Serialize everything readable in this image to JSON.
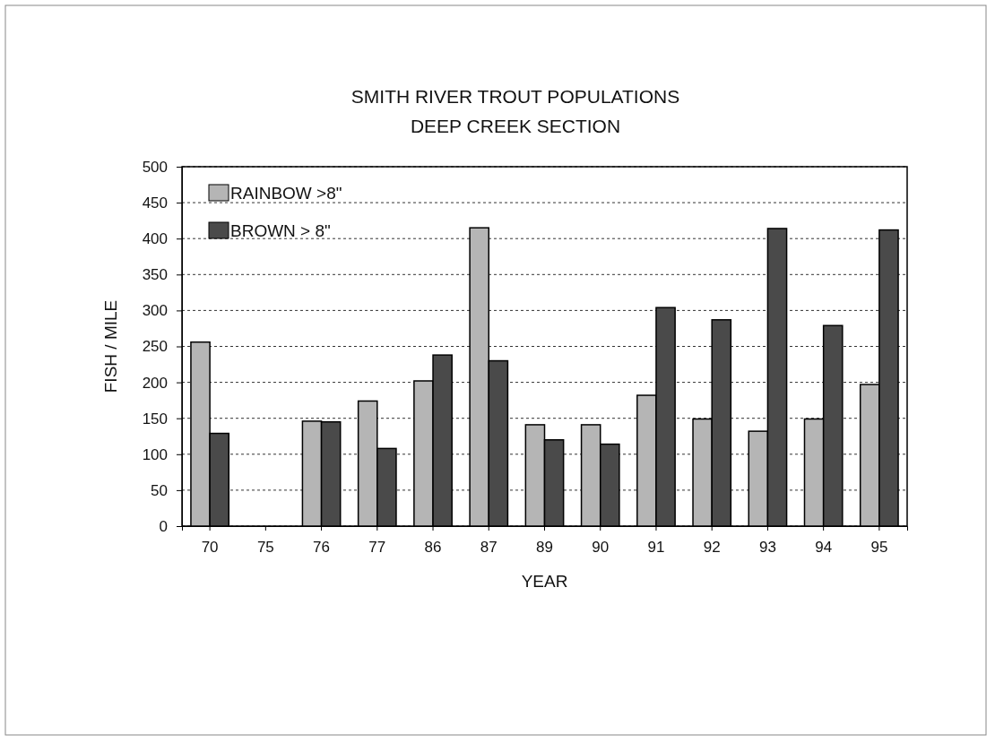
{
  "chart_data": {
    "type": "bar",
    "title": "SMITH RIVER TROUT POPULATIONS",
    "subtitle": "DEEP CREEK SECTION",
    "xlabel": "YEAR",
    "ylabel": "FISH / MILE",
    "categories": [
      "70",
      "75",
      "76",
      "77",
      "86",
      "87",
      "89",
      "90",
      "91",
      "92",
      "93",
      "94",
      "95"
    ],
    "series": [
      {
        "name": "RAINBOW >8\"",
        "color": "#b5b5b5",
        "values": [
          256,
          null,
          146,
          174,
          202,
          415,
          141,
          141,
          182,
          149,
          132,
          149,
          197
        ]
      },
      {
        "name": "BROWN > 8\"",
        "color": "#4a4a4a",
        "values": [
          129,
          null,
          145,
          108,
          238,
          230,
          120,
          114,
          304,
          287,
          414,
          279,
          412
        ]
      }
    ],
    "ylim": [
      0,
      500
    ],
    "yticks": [
      0,
      50,
      100,
      150,
      200,
      250,
      300,
      350,
      400,
      450,
      500
    ],
    "grid": "y",
    "legend": "top left"
  }
}
